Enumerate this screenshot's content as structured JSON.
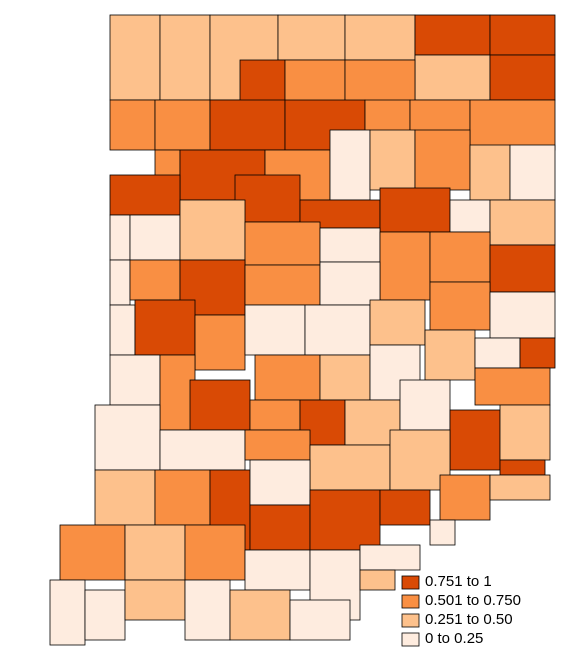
{
  "legend": [
    {
      "label": "0.751 to 1",
      "color": "#d94a05"
    },
    {
      "label": "0.501 to 0.750",
      "color": "#f98f43"
    },
    {
      "label": "0.251 to 0.50",
      "color": "#fdc18c"
    },
    {
      "label": "0 to 0.25",
      "color": "#feecdf"
    }
  ]
}
